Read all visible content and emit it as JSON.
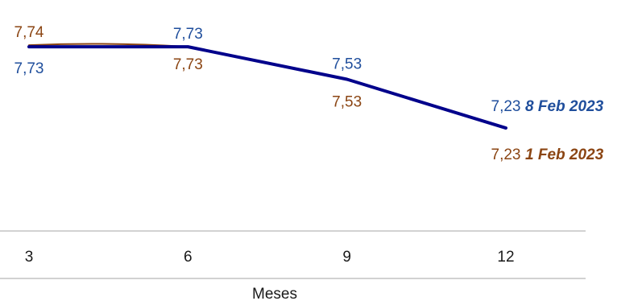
{
  "chart_data": {
    "type": "line",
    "x": [
      3,
      6,
      9,
      12
    ],
    "xlabel": "Meses",
    "series": [
      {
        "name": "1 Feb 2023",
        "values": [
          7.74,
          7.73,
          7.53,
          7.23
        ],
        "labels": [
          "7,74",
          "7,73",
          "7,53",
          "7,23"
        ],
        "color": "#8b4513"
      },
      {
        "name": "8 Feb 2023",
        "values": [
          7.73,
          7.73,
          7.53,
          7.23
        ],
        "labels": [
          "7,73",
          "7,73",
          "7,53",
          "7,23"
        ],
        "color": "#00008b",
        "label_color": "#1f4e9c"
      }
    ],
    "x_tick_labels": [
      "3",
      "6",
      "9",
      "12"
    ],
    "xlim": [
      3,
      12
    ],
    "ylim": [
      6.75,
      7.8
    ],
    "grid": false,
    "legend": "end-of-line labels"
  }
}
